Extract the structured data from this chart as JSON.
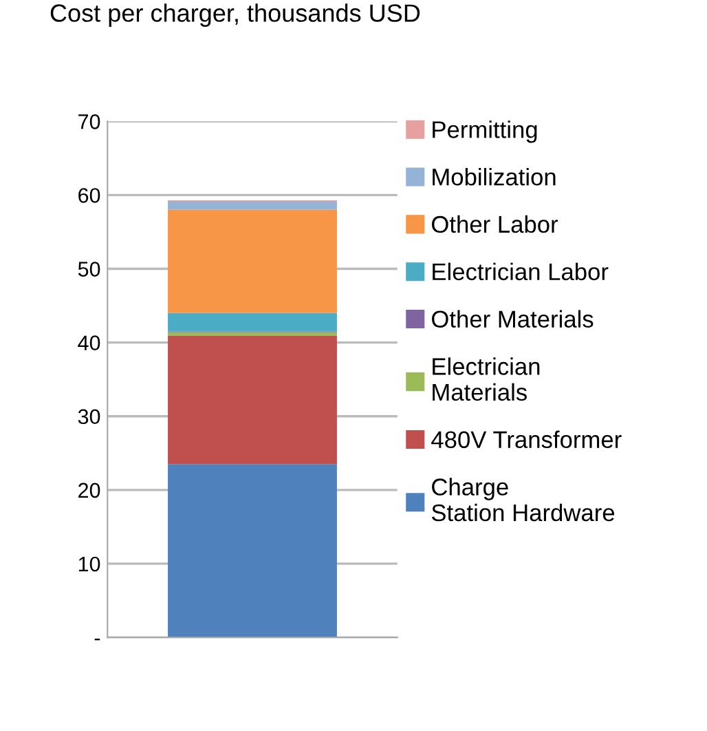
{
  "chart_data": {
    "type": "bar",
    "title": "Cost per charger, thousands USD",
    "stacked": true,
    "categories": [
      null
    ],
    "series": [
      {
        "name": "Charge Station Hardware",
        "color": "#4f81bd",
        "values": [
          23.5
        ]
      },
      {
        "name": "480V Transformer",
        "color": "#c0504d",
        "values": [
          17.4
        ]
      },
      {
        "name": "Electrician Materials",
        "color": "#9bbb59",
        "values": [
          0.5
        ]
      },
      {
        "name": "Other Materials",
        "color": "#8064a2",
        "values": [
          0.1
        ]
      },
      {
        "name": "Electrician Labor",
        "color": "#4bacc6",
        "values": [
          2.5
        ]
      },
      {
        "name": "Other Labor",
        "color": "#f79646",
        "values": [
          14.0
        ]
      },
      {
        "name": "Mobilization",
        "color": "#95b3d7",
        "values": [
          1.1
        ]
      },
      {
        "name": "Permitting",
        "color": "#e6a0a0",
        "values": [
          0.2
        ]
      }
    ],
    "ylim": [
      0,
      70
    ],
    "yticks": [
      {
        "value": 0,
        "label": "-"
      },
      10,
      20,
      30,
      40,
      50,
      60,
      70
    ],
    "grid": "y",
    "legend": "right"
  }
}
